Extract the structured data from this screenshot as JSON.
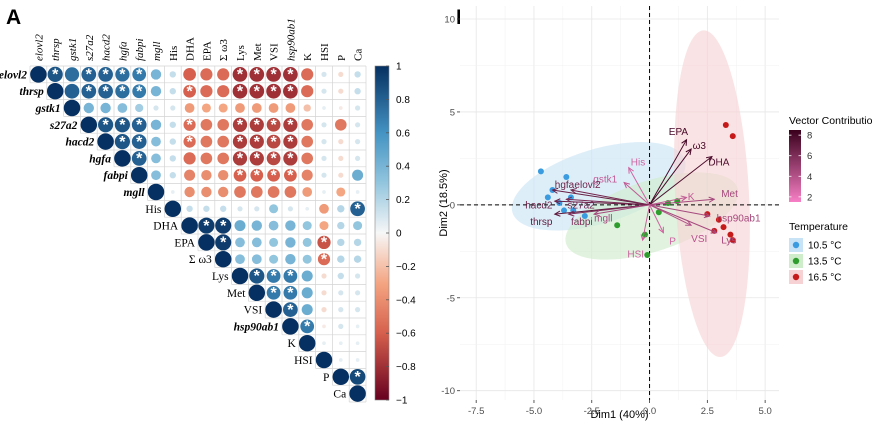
{
  "panels": {
    "a": "A",
    "b": "B"
  },
  "chart_data": [
    {
      "type": "heatmap",
      "subtype": "correlation-upper-triangle",
      "variables": [
        "elovl2",
        "thrsp",
        "gstk1",
        "s27a2",
        "hacd2",
        "hgfa",
        "fabpi",
        "mgll",
        "His",
        "DHA",
        "EPA",
        "Σ ω3",
        "Lys",
        "Met",
        "VSI",
        "hsp90ab1",
        "K",
        "HSI",
        "P",
        "Ca"
      ],
      "italic_variables": [
        "elovl2",
        "thrsp",
        "gstk1",
        "s27a2",
        "hacd2",
        "hgfa",
        "fabpi",
        "mgll",
        "hsp90ab1"
      ],
      "matrix": [
        [
          1,
          0.85,
          0.75,
          0.8,
          0.8,
          0.75,
          0.7,
          0.4,
          0.15,
          -0.6,
          -0.55,
          -0.55,
          -0.8,
          -0.8,
          -0.8,
          -0.8,
          -0.55,
          0.1,
          -0.1,
          0.15
        ],
        [
          0.85,
          1,
          0.8,
          0.8,
          0.8,
          0.75,
          0.7,
          0.4,
          0.15,
          -0.6,
          -0.55,
          -0.55,
          -0.8,
          -0.8,
          -0.8,
          -0.8,
          -0.55,
          0.1,
          -0.1,
          0.15
        ],
        [
          0.75,
          0.8,
          1,
          0.4,
          0.4,
          0.35,
          0.25,
          0.1,
          0.1,
          -0.35,
          -0.3,
          -0.3,
          -0.35,
          -0.35,
          -0.35,
          -0.35,
          -0.2,
          0.05,
          -0.05,
          0.1
        ],
        [
          0.8,
          0.8,
          0.4,
          1,
          0.85,
          0.85,
          0.8,
          0.4,
          0.15,
          -0.55,
          -0.5,
          -0.5,
          -0.75,
          -0.75,
          -0.7,
          -0.75,
          -0.5,
          0.1,
          -0.5,
          0.1
        ],
        [
          0.8,
          0.8,
          0.4,
          0.85,
          1,
          0.85,
          0.8,
          0.35,
          0.15,
          -0.55,
          -0.5,
          -0.5,
          -0.75,
          -0.75,
          -0.7,
          -0.75,
          -0.5,
          0.1,
          -0.1,
          0.1
        ],
        [
          0.75,
          0.75,
          0.35,
          0.85,
          0.85,
          1,
          0.8,
          0.35,
          0.15,
          -0.55,
          -0.5,
          -0.5,
          -0.75,
          -0.75,
          -0.7,
          -0.75,
          -0.5,
          0.1,
          -0.1,
          0.1
        ],
        [
          0.7,
          0.7,
          0.25,
          0.8,
          0.8,
          0.8,
          1,
          0.35,
          0.15,
          -0.45,
          -0.4,
          -0.4,
          -0.6,
          -0.6,
          -0.6,
          -0.6,
          -0.45,
          0.1,
          -0.1,
          0.45
        ],
        [
          0.4,
          0.4,
          0.1,
          0.4,
          0.35,
          0.35,
          0.35,
          1,
          0.05,
          -0.4,
          -0.4,
          -0.4,
          -0.5,
          -0.5,
          -0.5,
          -0.5,
          -0.35,
          0.05,
          -0.3,
          0.05
        ],
        [
          0.15,
          0.15,
          0.1,
          0.15,
          0.15,
          0.15,
          0.15,
          0.05,
          1,
          0.15,
          0.15,
          0.15,
          0.1,
          0.1,
          0.3,
          0.1,
          0.05,
          -0.35,
          0.2,
          0.8
        ],
        [
          -0.6,
          -0.6,
          -0.35,
          -0.55,
          -0.55,
          -0.55,
          -0.45,
          -0.4,
          0.15,
          1,
          0.95,
          0.95,
          0.45,
          0.4,
          0.35,
          0.4,
          0.3,
          -0.3,
          0.2,
          0.3
        ],
        [
          -0.55,
          -0.55,
          -0.3,
          -0.5,
          -0.5,
          -0.5,
          -0.4,
          -0.4,
          0.15,
          0.95,
          1,
          0.95,
          0.35,
          0.35,
          0.3,
          0.4,
          0.3,
          -0.65,
          0.2,
          0.2
        ],
        [
          -0.55,
          -0.55,
          -0.3,
          -0.5,
          -0.5,
          -0.5,
          -0.4,
          -0.4,
          0.15,
          0.95,
          0.95,
          1,
          0.35,
          0.35,
          0.3,
          0.4,
          0.3,
          -0.55,
          0.2,
          0.2
        ],
        [
          -0.8,
          -0.8,
          -0.35,
          -0.75,
          -0.75,
          -0.75,
          -0.6,
          -0.5,
          0.1,
          0.45,
          0.35,
          0.35,
          1,
          0.85,
          0.7,
          0.7,
          0.45,
          -0.1,
          0.15,
          0.1
        ],
        [
          -0.8,
          -0.8,
          -0.35,
          -0.75,
          -0.75,
          -0.75,
          -0.6,
          -0.5,
          0.1,
          0.4,
          0.35,
          0.35,
          0.85,
          1,
          0.7,
          0.7,
          0.45,
          -0.1,
          0.1,
          0.1
        ],
        [
          -0.8,
          -0.8,
          -0.35,
          -0.7,
          -0.7,
          -0.7,
          -0.6,
          -0.5,
          0.3,
          0.35,
          0.3,
          0.3,
          0.7,
          0.7,
          1,
          0.8,
          0.45,
          -0.1,
          0.1,
          0.1
        ],
        [
          -0.8,
          -0.8,
          -0.35,
          -0.75,
          -0.75,
          -0.75,
          -0.6,
          -0.5,
          0.1,
          0.4,
          0.4,
          0.4,
          0.7,
          0.7,
          0.8,
          1,
          0.7,
          -0.05,
          0.1,
          0.05
        ],
        [
          -0.55,
          -0.55,
          -0.2,
          -0.5,
          -0.5,
          -0.5,
          -0.45,
          -0.35,
          0.05,
          0.3,
          0.3,
          0.3,
          0.45,
          0.45,
          0.45,
          0.7,
          1,
          0.05,
          0.05,
          0.05
        ],
        [
          0.1,
          0.1,
          0.05,
          0.1,
          0.1,
          0.1,
          0.1,
          0.05,
          -0.35,
          -0.3,
          -0.65,
          -0.55,
          -0.1,
          -0.1,
          -0.1,
          -0.05,
          0.05,
          1,
          0.05,
          0.05
        ],
        [
          -0.1,
          -0.1,
          -0.05,
          -0.5,
          -0.1,
          -0.1,
          -0.1,
          -0.3,
          0.2,
          0.2,
          0.2,
          0.2,
          0.15,
          0.1,
          0.1,
          0.1,
          0.05,
          0.05,
          1,
          0.9
        ],
        [
          0.15,
          0.15,
          0.1,
          0.1,
          0.1,
          0.1,
          0.45,
          0.05,
          0.8,
          0.3,
          0.2,
          0.2,
          0.1,
          0.1,
          0.1,
          0.05,
          0.05,
          0.05,
          0.9,
          1
        ]
      ],
      "significant": [
        [
          0,
          1
        ],
        [
          0,
          3
        ],
        [
          0,
          4
        ],
        [
          0,
          5
        ],
        [
          0,
          6
        ],
        [
          0,
          12
        ],
        [
          0,
          13
        ],
        [
          0,
          14
        ],
        [
          0,
          15
        ],
        [
          1,
          3
        ],
        [
          1,
          4
        ],
        [
          1,
          5
        ],
        [
          1,
          6
        ],
        [
          1,
          9
        ],
        [
          1,
          12
        ],
        [
          1,
          13
        ],
        [
          1,
          14
        ],
        [
          1,
          15
        ],
        [
          3,
          4
        ],
        [
          3,
          5
        ],
        [
          3,
          6
        ],
        [
          3,
          9
        ],
        [
          3,
          12
        ],
        [
          3,
          13
        ],
        [
          3,
          14
        ],
        [
          3,
          15
        ],
        [
          4,
          5
        ],
        [
          4,
          6
        ],
        [
          4,
          9
        ],
        [
          4,
          12
        ],
        [
          4,
          13
        ],
        [
          4,
          14
        ],
        [
          4,
          15
        ],
        [
          5,
          6
        ],
        [
          5,
          12
        ],
        [
          5,
          13
        ],
        [
          5,
          14
        ],
        [
          5,
          15
        ],
        [
          6,
          12
        ],
        [
          6,
          13
        ],
        [
          6,
          14
        ],
        [
          6,
          15
        ],
        [
          8,
          19
        ],
        [
          9,
          10
        ],
        [
          9,
          11
        ],
        [
          10,
          11
        ],
        [
          10,
          17
        ],
        [
          11,
          17
        ],
        [
          12,
          13
        ],
        [
          12,
          14
        ],
        [
          12,
          15
        ],
        [
          13,
          14
        ],
        [
          13,
          15
        ],
        [
          14,
          15
        ],
        [
          15,
          16
        ],
        [
          18,
          19
        ]
      ],
      "colorbar": {
        "ticks": [
          1,
          0.8,
          0.6,
          0.4,
          0.2,
          0,
          -0.2,
          -0.4,
          -0.6,
          -0.8,
          -1
        ],
        "tick_labels": [
          "1",
          "0.8",
          "0.6",
          "0.4",
          "0.2",
          "0",
          "−0.2",
          "−0.4",
          "−0.6",
          "−0.8",
          "−1"
        ],
        "colors": {
          "positive": "#053061",
          "mid": "#f7f7f7",
          "negative": "#67001f"
        }
      }
    },
    {
      "type": "scatter",
      "subtype": "pca-biplot",
      "xlabel": "Dim1 (40%)",
      "ylabel": "Dim2 (18.5%)",
      "xlim": [
        -8.2,
        5.6
      ],
      "ylim": [
        -10.5,
        10.7
      ],
      "xticks": [
        -7.5,
        -5.0,
        -2.5,
        0.0,
        2.5,
        5.0
      ],
      "xtick_labels": [
        "-7.5",
        "-5.0",
        "-2.5",
        "0.0",
        "2.5",
        "5.0"
      ],
      "yticks": [
        -10,
        -5,
        0,
        5,
        10
      ],
      "ytick_labels": [
        "-10",
        "-5",
        "0",
        "5",
        "10"
      ],
      "grid": true,
      "series": [
        {
          "name": "10.5 °C",
          "color": "#3a9be0",
          "fill": "#c9e3f6",
          "points": [
            [
              -4.7,
              1.8
            ],
            [
              -3.6,
              1.5
            ],
            [
              -4.2,
              0.8
            ],
            [
              -3.9,
              0.1
            ],
            [
              -3.7,
              -0.3
            ],
            [
              -3.4,
              0.4
            ],
            [
              -2.8,
              -0.6
            ],
            [
              -4.4,
              0.4
            ],
            [
              -3.3,
              -0.3
            ]
          ],
          "ellipse": {
            "cx": -2.2,
            "cy": 1.0,
            "rx": 3.9,
            "ry": 2.0,
            "angle_deg": -17
          }
        },
        {
          "name": "13.5 °C",
          "color": "#2e9d2e",
          "fill": "#cfeccb",
          "points": [
            [
              -1.4,
              -1.1
            ],
            [
              -0.2,
              -1.6
            ],
            [
              0.4,
              -0.4
            ],
            [
              1.2,
              0.2
            ],
            [
              -0.1,
              -2.7
            ],
            [
              0.8,
              0.1
            ]
          ],
          "ellipse": {
            "cx": 0.1,
            "cy": -0.6,
            "rx": 3.9,
            "ry": 1.9,
            "angle_deg": -18
          }
        },
        {
          "name": "16.5 °C",
          "color": "#c61a1a",
          "fill": "#f7d2d4",
          "points": [
            [
              3.3,
              4.3
            ],
            [
              3.6,
              3.7
            ],
            [
              2.5,
              -0.5
            ],
            [
              3.2,
              -1.2
            ],
            [
              3.5,
              -1.6
            ],
            [
              2.8,
              -1.4
            ],
            [
              3.0,
              -0.8
            ],
            [
              3.6,
              -1.9
            ]
          ],
          "ellipse": {
            "cx": 2.7,
            "cy": 0.6,
            "rx": 1.6,
            "ry": 8.8,
            "angle_deg": -3
          }
        }
      ],
      "vectors": [
        {
          "name": "EPA",
          "x": 1.6,
          "y": 3.5,
          "contribution": 8.1,
          "label_dx": -0.35,
          "label_dy": 0.45,
          "anchor": "middle"
        },
        {
          "name": "ω3",
          "x": 1.8,
          "y": 3.0,
          "contribution": 8.0,
          "label_dx": 0.35,
          "label_dy": 0.2,
          "anchor": "middle"
        },
        {
          "name": "DHA",
          "x": 2.7,
          "y": 2.6,
          "contribution": 7.8,
          "label_dx": 0.3,
          "label_dy": -0.3,
          "anchor": "middle"
        },
        {
          "name": "His",
          "x": -0.9,
          "y": 2.0,
          "contribution": 3.0,
          "label_dx": 0.4,
          "label_dy": 0.3,
          "anchor": "middle"
        },
        {
          "name": "gstk1",
          "x": -1.1,
          "y": 1.2,
          "contribution": 3.5,
          "label_dx": -0.3,
          "label_dy": 0.2,
          "anchor": "end"
        },
        {
          "name": "hgfa",
          "x": -4.2,
          "y": 0.8,
          "contribution": 6.8,
          "label_dx": 0.1,
          "label_dy": 0.3,
          "anchor": "start"
        },
        {
          "name": "elovl2",
          "x": -3.4,
          "y": 0.8,
          "contribution": 6.5,
          "label_dx": 0.15,
          "label_dy": 0.3,
          "anchor": "start"
        },
        {
          "name": "hacd2",
          "x": -4.1,
          "y": 0.2,
          "contribution": 6.8,
          "label_dx": -0.1,
          "label_dy": -0.2,
          "anchor": "end"
        },
        {
          "name": "s27a2",
          "x": -3.6,
          "y": 0.3,
          "contribution": 6.3,
          "label_dx": 0.05,
          "label_dy": -0.3,
          "anchor": "start"
        },
        {
          "name": "thrsp",
          "x": -4.1,
          "y": -0.5,
          "contribution": 7.2,
          "label_dx": -0.1,
          "label_dy": -0.4,
          "anchor": "end"
        },
        {
          "name": "fabpi",
          "x": -3.5,
          "y": -0.5,
          "contribution": 6.0,
          "label_dx": 0.1,
          "label_dy": -0.4,
          "anchor": "start"
        },
        {
          "name": "mgll",
          "x": -2.4,
          "y": -0.5,
          "contribution": 4.5,
          "label_dx": 0.4,
          "label_dy": -0.2,
          "anchor": "middle"
        },
        {
          "name": "K",
          "x": 1.6,
          "y": 0.4,
          "contribution": 3.5,
          "label_dx": 0.05,
          "label_dy": 0.05,
          "anchor": "start"
        },
        {
          "name": "Met",
          "x": 2.8,
          "y": 0.3,
          "contribution": 4.5,
          "label_dx": 0.3,
          "label_dy": 0.3,
          "anchor": "start"
        },
        {
          "name": "hsp90ab1",
          "x": 2.6,
          "y": -0.6,
          "contribution": 4.5,
          "label_dx": 0.3,
          "label_dy": -0.1,
          "anchor": "start"
        },
        {
          "name": "VSI",
          "x": 1.8,
          "y": -1.1,
          "contribution": 4.0,
          "label_dx": 0.0,
          "label_dy": -0.7,
          "anchor": "start"
        },
        {
          "name": "Lys",
          "x": 2.9,
          "y": -1.5,
          "contribution": 4.5,
          "label_dx": 0.2,
          "label_dy": -0.4,
          "anchor": "start"
        },
        {
          "name": "P",
          "x": 0.6,
          "y": -1.5,
          "contribution": 3.0,
          "label_dx": 0.25,
          "label_dy": -0.45,
          "anchor": "start"
        },
        {
          "name": "HSI",
          "x": -0.3,
          "y": -1.9,
          "contribution": 3.2,
          "label_dx": -0.3,
          "label_dy": -0.75,
          "anchor": "middle"
        }
      ],
      "vector_contribution_legend": {
        "title": "Vector Contribution",
        "ticks": [
          8,
          6,
          4,
          2
        ],
        "tick_labels": [
          "8",
          "6",
          "4",
          "2"
        ],
        "range": [
          1.5,
          8.5
        ],
        "colors": {
          "low": "#f77fc5",
          "high": "#3a001c"
        }
      },
      "temperature_legend": {
        "title": "Temperature",
        "entries": [
          "10.5 °C",
          "13.5 °C",
          "16.5 °C"
        ]
      }
    }
  ]
}
